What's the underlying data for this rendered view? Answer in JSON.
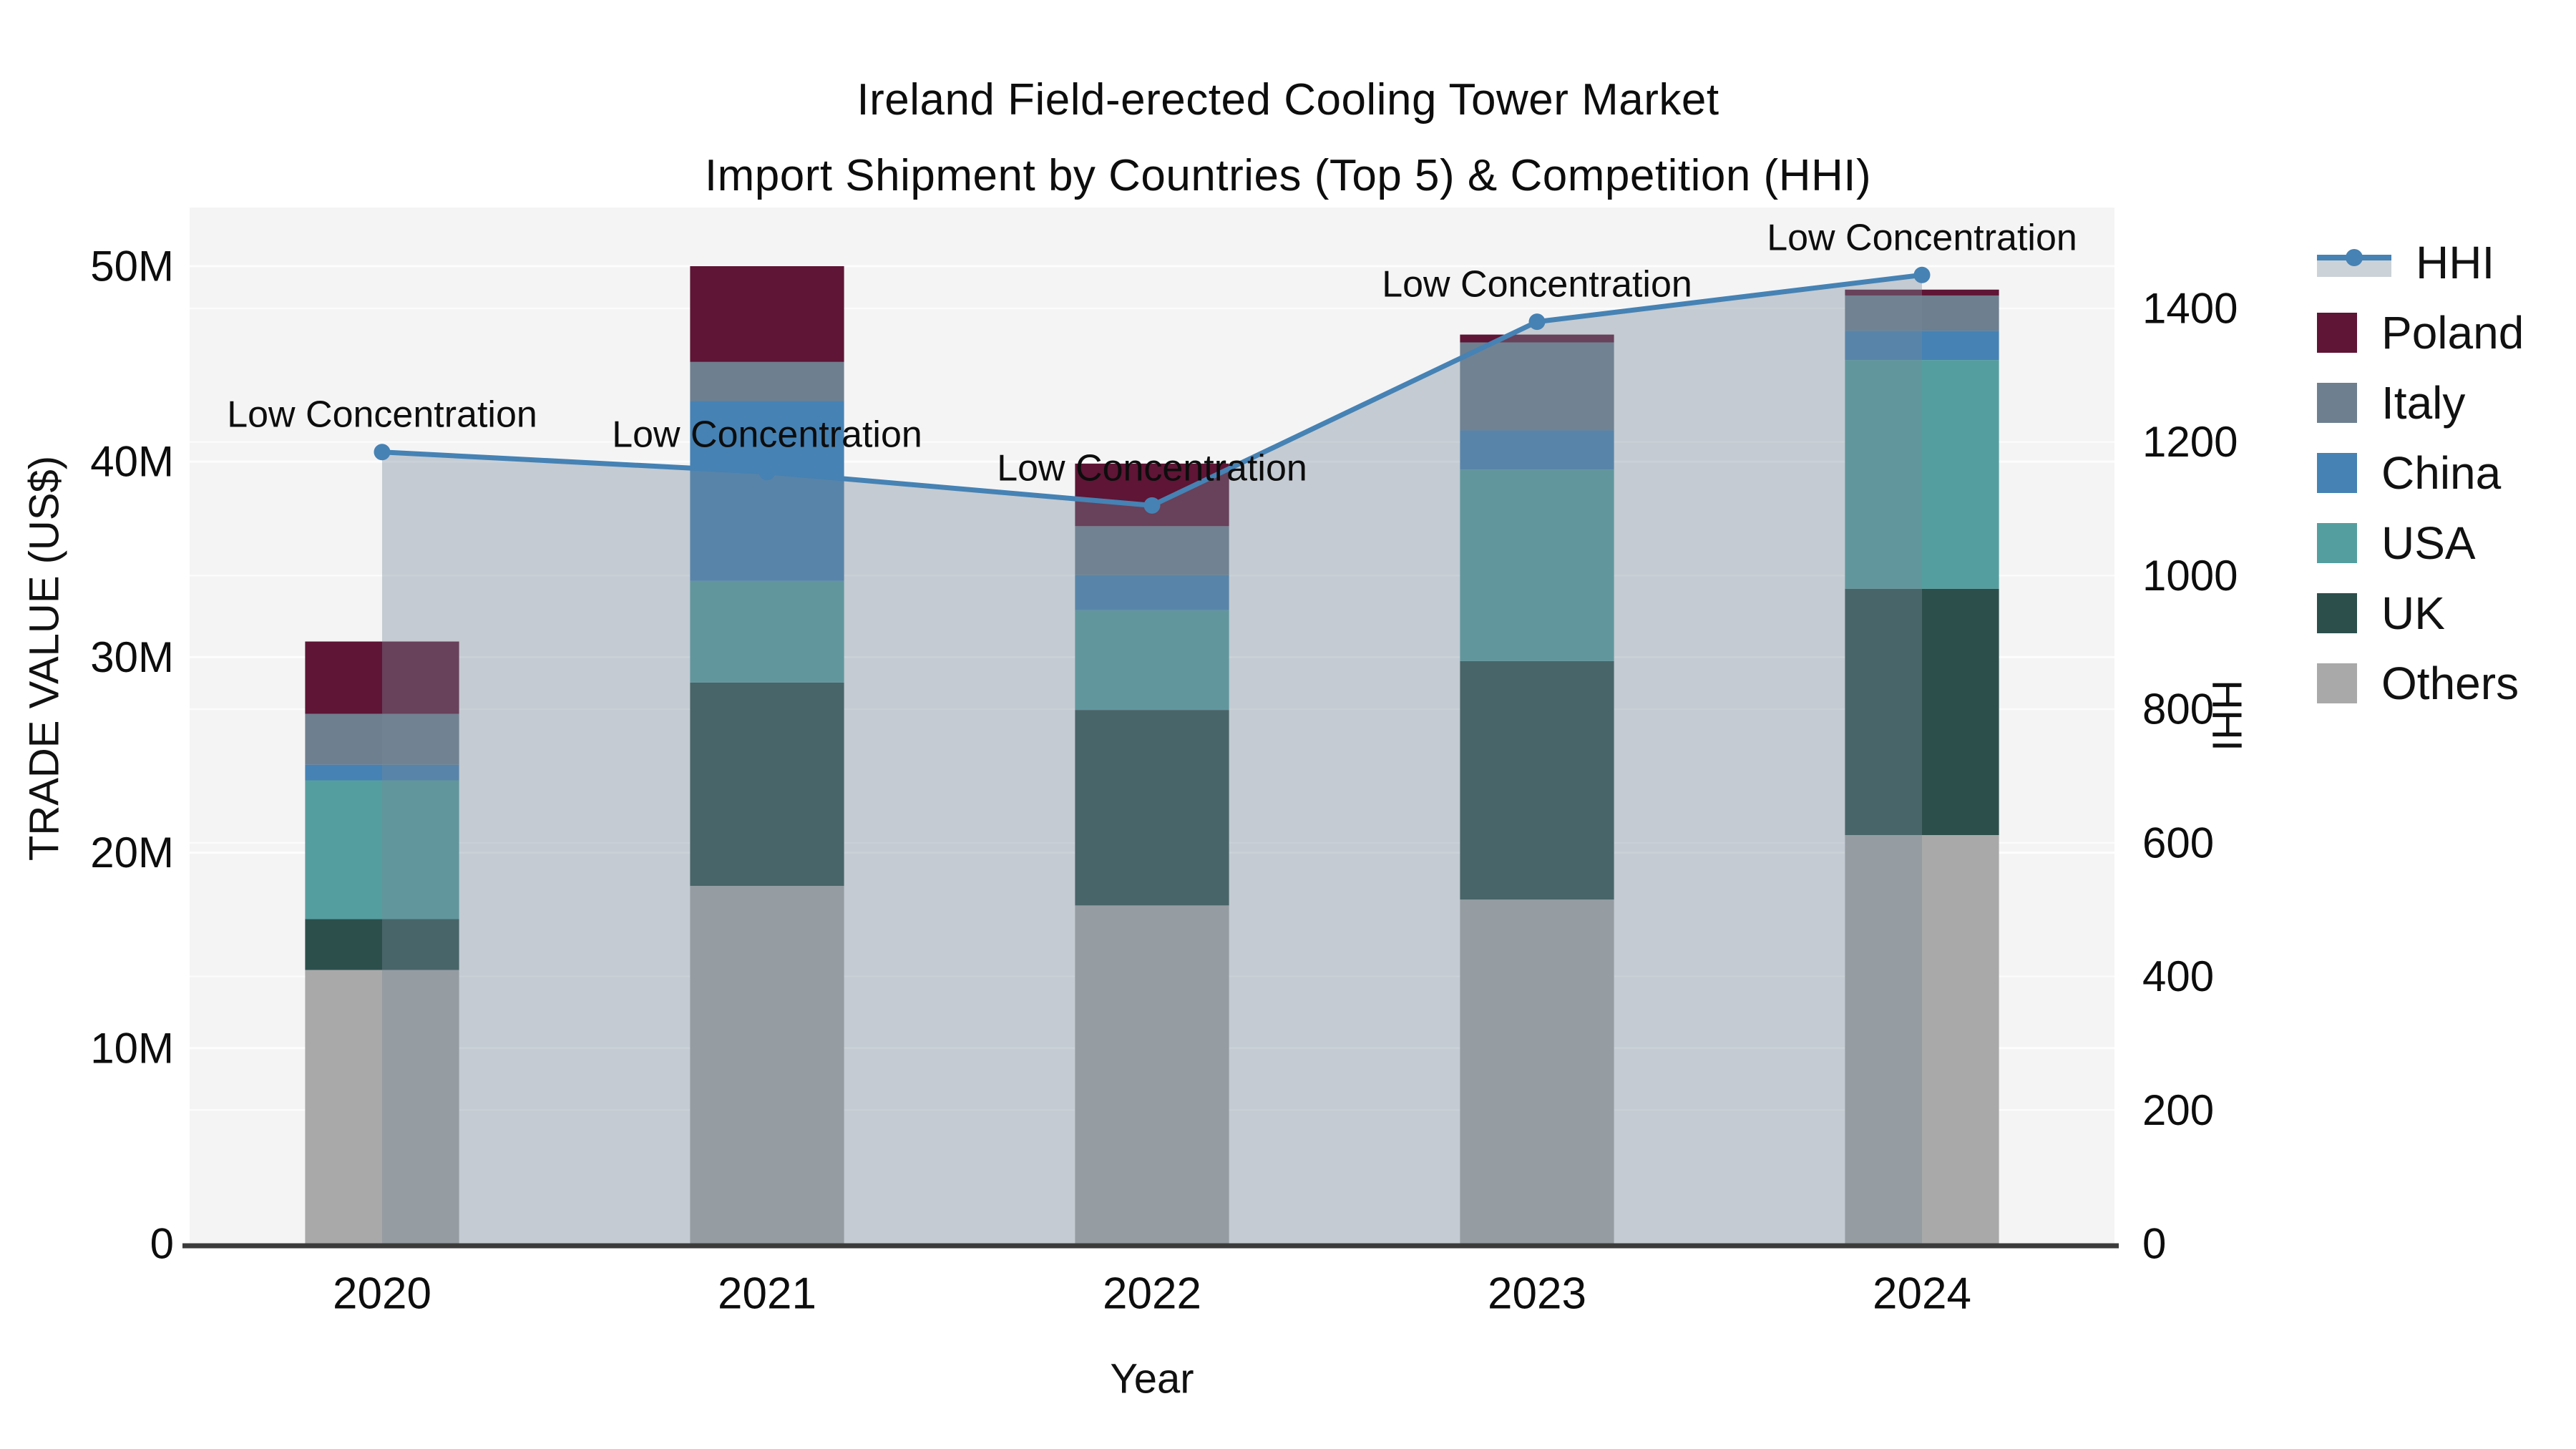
{
  "title": {
    "line1": "Ireland Field-erected Cooling Tower Market",
    "line2": "Import Shipment by Countries (Top 5) & Competition (HHI)"
  },
  "axes": {
    "x_title": "Year",
    "y_left_title": "TRADE VALUE (US$)",
    "y_right_title": "HHI"
  },
  "legend": {
    "items": [
      {
        "label": "HHI",
        "series": "HHI"
      },
      {
        "label": "Poland",
        "series": "Poland"
      },
      {
        "label": "Italy",
        "series": "Italy"
      },
      {
        "label": "China",
        "series": "China"
      },
      {
        "label": "USA",
        "series": "USA"
      },
      {
        "label": "UK",
        "series": "UK"
      },
      {
        "label": "Others",
        "series": "Others"
      }
    ]
  },
  "chart_data": {
    "type": "combo: stacked-bar + line-area (dual axis)",
    "title": "Ireland Field-erected Cooling Tower Market — Import Shipment by Countries (Top 5) & Competition (HHI)",
    "categories": [
      "2020",
      "2021",
      "2022",
      "2023",
      "2024"
    ],
    "bar_unit": "million US$",
    "series": [
      {
        "name": "Others",
        "color": "#A9A9A9",
        "values": [
          14.0,
          18.3,
          17.3,
          17.6,
          20.9
        ]
      },
      {
        "name": "UK",
        "color": "#2C4F4C",
        "values": [
          2.6,
          10.4,
          10.0,
          12.2,
          12.6
        ]
      },
      {
        "name": "USA",
        "color": "#559EA0",
        "values": [
          7.1,
          5.2,
          5.1,
          9.8,
          11.7
        ]
      },
      {
        "name": "China",
        "color": "#4682B4",
        "values": [
          0.8,
          9.2,
          1.8,
          2.0,
          1.5
        ]
      },
      {
        "name": "Italy",
        "color": "#6E7F8F",
        "values": [
          2.6,
          2.0,
          2.5,
          4.5,
          1.8
        ]
      },
      {
        "name": "Poland",
        "color": "#5F1535",
        "values": [
          3.7,
          4.9,
          3.2,
          0.4,
          0.3
        ]
      }
    ],
    "bar_totals": [
      30.8,
      50.0,
      39.9,
      46.5,
      48.8
    ],
    "line": {
      "name": "HHI",
      "color": "#4682B4",
      "area_fill": "rgba(119,136,153,0.38)",
      "values": [
        1185,
        1155,
        1105,
        1380,
        1450
      ]
    },
    "annotations": [
      "Low Concentration",
      "Low Concentration",
      "Low Concentration",
      "Low Concentration",
      "Low Concentration"
    ],
    "y_left": {
      "title": "TRADE VALUE (US$)",
      "ticks": [
        0,
        10,
        20,
        30,
        40,
        50
      ],
      "tick_labels": [
        "0",
        "10M",
        "20M",
        "30M",
        "40M",
        "50M"
      ],
      "max": 53
    },
    "y_right": {
      "title": "HHI",
      "ticks": [
        0,
        200,
        400,
        600,
        800,
        1000,
        1200,
        1400
      ],
      "max": 1551
    },
    "x_title": "Year",
    "grid": true,
    "legend_position": "right",
    "plot_background": "#f4f4f5"
  }
}
